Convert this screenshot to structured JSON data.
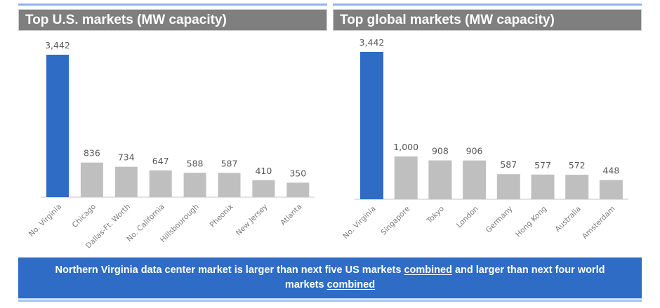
{
  "chart_data": [
    {
      "type": "bar",
      "title": "Top U.S. markets (MW capacity)",
      "xlabel": "",
      "ylabel": "",
      "categories": [
        "No. Virginia",
        "Chicago",
        "Dallas-Ft. Worth",
        "No. California",
        "Hillsbourough",
        "Pheonix",
        "New Jersey",
        "Atlanta"
      ],
      "values": [
        3442,
        836,
        734,
        647,
        588,
        587,
        410,
        350
      ],
      "value_labels": [
        "3,442",
        "836",
        "734",
        "647",
        "588",
        "587",
        "410",
        "350"
      ],
      "highlight_index": 0,
      "ylim": [
        0,
        3442
      ],
      "grid": false,
      "legend": "none"
    },
    {
      "type": "bar",
      "title": "Top global markets (MW capacity)",
      "xlabel": "",
      "ylabel": "",
      "categories": [
        "No. Virginia",
        "Singapore",
        "Tokyo",
        "London",
        "Germany",
        "Hong Kong",
        "Australia",
        "Amsterdam"
      ],
      "values": [
        3442,
        1000,
        908,
        906,
        587,
        577,
        572,
        448
      ],
      "value_labels": [
        "3,442",
        "1,000",
        "908",
        "906",
        "587",
        "577",
        "572",
        "448"
      ],
      "highlight_index": 0,
      "ylim": [
        0,
        3442
      ],
      "grid": false,
      "legend": "none"
    }
  ],
  "colors": {
    "highlight": "#2e6cc6",
    "bar": "#bfbfbf",
    "title_bg": "#7f7f7f",
    "banner_bg": "#2e6cc6",
    "axis": "#d9d9d9"
  },
  "banner": {
    "part1": "Northern Virginia data center market is larger than next five US markets ",
    "emph1": "combined",
    "part2": " and larger than next four world markets ",
    "emph2": "combined"
  }
}
